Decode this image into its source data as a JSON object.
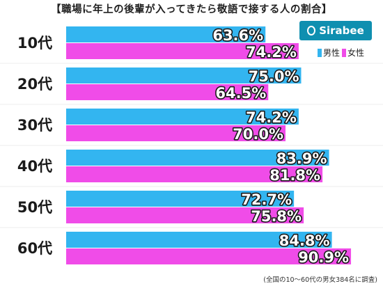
{
  "title": "【職場に年上の後輩が入ってきたら敬語で接する人の割合】",
  "logo": {
    "text": "Sirabee",
    "icon": "sirabee-logo-icon"
  },
  "colors": {
    "male": "#33b5f0",
    "female": "#f04ce8",
    "background": "#ffffff"
  },
  "footnote": "(全国の10〜60代の男女384名に調査)",
  "chart_data": {
    "type": "bar",
    "orientation": "horizontal",
    "title": "【職場に年上の後輩が入ってきたら敬語で接する人の割合】",
    "categories": [
      "10代",
      "20代",
      "30代",
      "40代",
      "50代",
      "60代"
    ],
    "series": [
      {
        "name": "男性",
        "values": [
          63.6,
          75.0,
          74.2,
          83.9,
          72.7,
          84.8
        ],
        "labels": [
          "63.6%",
          "75.0%",
          "74.2%",
          "83.9%",
          "72.7%",
          "84.8%"
        ]
      },
      {
        "name": "女性",
        "values": [
          74.2,
          64.5,
          70.0,
          81.8,
          75.8,
          90.9
        ],
        "labels": [
          "74.2%",
          "64.5%",
          "70.0%",
          "81.8%",
          "75.8%",
          "90.9%"
        ]
      }
    ],
    "xlim": [
      0,
      100
    ],
    "legend": "top-right",
    "grid": false
  }
}
